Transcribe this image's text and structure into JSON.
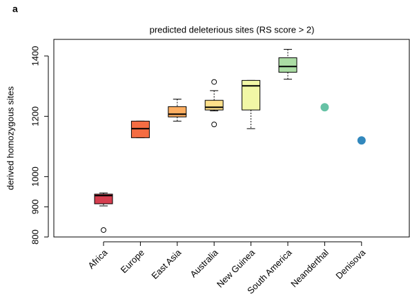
{
  "chart_data": {
    "type": "box",
    "panel_label": "a",
    "title": "predicted deleterious sites (RS score > 2)",
    "ylabel": "derived homozygous sites",
    "categories": [
      "Africa",
      "Europe",
      "East Asia",
      "Australia",
      "New Guinea",
      "South America",
      "Neanderthal",
      "Denisova"
    ],
    "colors": [
      "#d53e4f",
      "#f46d43",
      "#fdae61",
      "#fee08b",
      "#f1f7a6",
      "#abdda4",
      "#66c2a5",
      "#3288bd"
    ],
    "stats": [
      {
        "min": 903,
        "q1": 910,
        "median": 937,
        "q3": 942,
        "max": 946,
        "outliers": [
          823
        ]
      },
      {
        "min": 1129,
        "q1": 1129,
        "median": 1159,
        "q3": 1184,
        "max": 1184,
        "outliers": []
      },
      {
        "min": 1184,
        "q1": 1198,
        "median": 1207,
        "q3": 1232,
        "max": 1257,
        "outliers": []
      },
      {
        "min": 1218,
        "q1": 1221,
        "median": 1230,
        "q3": 1253,
        "max": 1285,
        "outliers": [
          1314,
          1173
        ]
      },
      {
        "min": 1159,
        "q1": 1221,
        "median": 1301,
        "q3": 1319,
        "max": 1319,
        "outliers": []
      },
      {
        "min": 1323,
        "q1": 1346,
        "median": 1365,
        "q3": 1394,
        "max": 1422,
        "outliers": []
      },
      {
        "value": 1230
      },
      {
        "value": 1120
      }
    ],
    "ylim": [
      800,
      1455
    ],
    "yticks": [
      800,
      900,
      1000,
      1200,
      1400
    ]
  }
}
